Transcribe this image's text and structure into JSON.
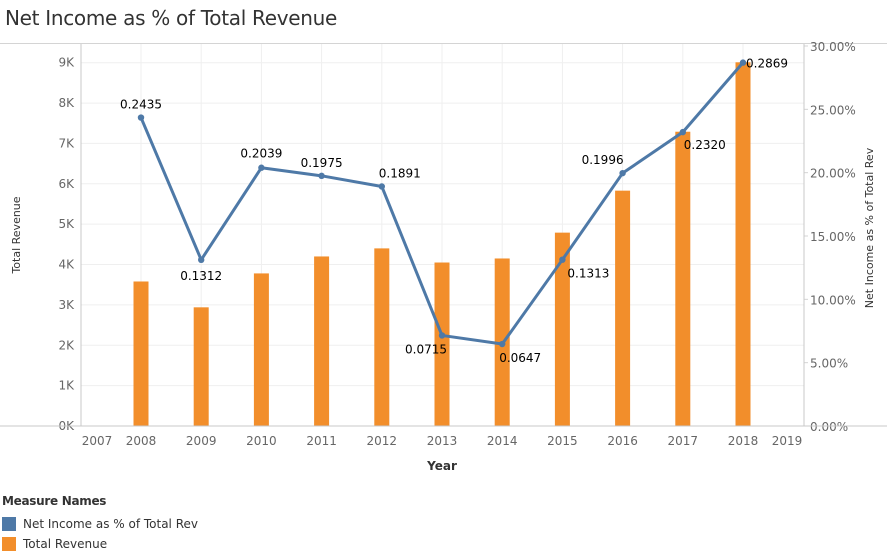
{
  "title": "Net Income as % of Total Revenue",
  "legend": {
    "title": "Measure Names",
    "items": [
      {
        "label": "Net Income as % of Total Rev",
        "color": "#4e79a7"
      },
      {
        "label": "Total Revenue",
        "color": "#f28e2b"
      }
    ]
  },
  "chart_data": {
    "type": "bar+line",
    "title": "Net Income as % of Total Revenue",
    "xlabel": "Year",
    "ylabel_left": "Total Revenue",
    "ylabel_right": "Net Income as % of Total Rev",
    "x_ticks": [
      "2007",
      "2008",
      "2009",
      "2010",
      "2011",
      "2012",
      "2013",
      "2014",
      "2015",
      "2016",
      "2017",
      "2018",
      "2019"
    ],
    "x_range": [
      2007,
      2019
    ],
    "categories": [
      2008,
      2009,
      2010,
      2011,
      2012,
      2013,
      2014,
      2015,
      2016,
      2017,
      2018
    ],
    "y_left_ticks": [
      "0K",
      "1K",
      "2K",
      "3K",
      "4K",
      "5K",
      "6K",
      "7K",
      "8K",
      "9K"
    ],
    "y_left_range": [
      0,
      9400
    ],
    "y_right_ticks": [
      "0.00%",
      "5.00%",
      "10.00%",
      "15.00%",
      "20.00%",
      "25.00%",
      "30.00%"
    ],
    "y_right_range": [
      0,
      0.3
    ],
    "grid": true,
    "legend_position": "bottom-left",
    "series": [
      {
        "name": "Total Revenue",
        "type": "bar",
        "axis": "left",
        "color": "#f28e2b",
        "values": [
          3580,
          2940,
          3780,
          4200,
          4400,
          4050,
          4150,
          4790,
          5830,
          7290,
          9010
        ]
      },
      {
        "name": "Net Income as % of Total Rev",
        "type": "line",
        "axis": "right",
        "color": "#4e79a7",
        "values": [
          0.2435,
          0.1312,
          0.2039,
          0.1975,
          0.1891,
          0.0715,
          0.0647,
          0.1313,
          0.1996,
          0.232,
          0.2869
        ],
        "labels": [
          "0.2435",
          "0.1312",
          "0.2039",
          "0.1975",
          "0.1891",
          "0.0715",
          "0.0647",
          "0.1313",
          "0.1996",
          "0.2320",
          "0.2869"
        ]
      }
    ]
  }
}
